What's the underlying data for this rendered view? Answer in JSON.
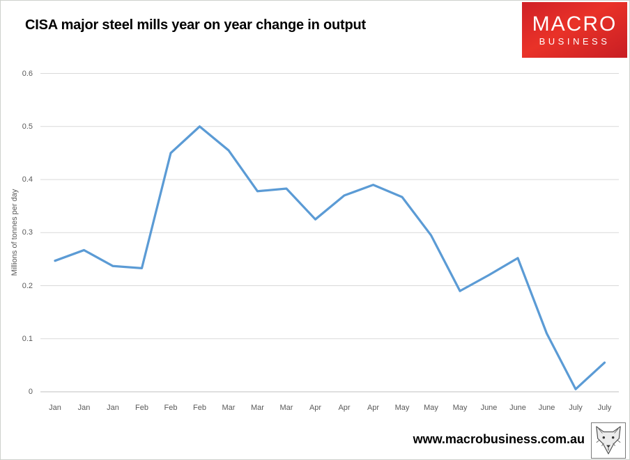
{
  "header": {
    "logo": {
      "line1": "MACRO",
      "line2": "BUSINESS",
      "bg_color": "#da2127",
      "text_color": "#ffffff"
    }
  },
  "chart_data": {
    "type": "line",
    "title": "CISA major steel mills year on year change in output",
    "ylabel": "Millions of tonnes per day",
    "xlabel": "",
    "categories": [
      "Jan",
      "Jan",
      "Jan",
      "Feb",
      "Feb",
      "Feb",
      "Mar",
      "Mar",
      "Mar",
      "Apr",
      "Apr",
      "Apr",
      "May",
      "May",
      "May",
      "June",
      "June",
      "June",
      "July",
      "July"
    ],
    "series": [
      {
        "name": "CISA major steel mills year on year change in output",
        "values": [
          0.247,
          0.267,
          0.237,
          0.233,
          0.45,
          0.5,
          0.455,
          0.378,
          0.383,
          0.325,
          0.37,
          0.39,
          0.367,
          0.295,
          0.19,
          0.22,
          0.252,
          0.11,
          0.005,
          0.055
        ]
      }
    ],
    "ylim": [
      0,
      0.6
    ],
    "yticks": [
      0,
      0.1,
      0.2,
      0.3,
      0.4,
      0.5,
      0.6
    ],
    "grid": true,
    "legend": "none",
    "line_color": "#5B9BD5",
    "gridline_color": "#d9d9d9",
    "zero_axis_color": "#bfbfbf",
    "axis_label_color": "#595959"
  },
  "footer": {
    "url": "www.macrobusiness.com.au",
    "fox_logo": "fox-head-icon"
  }
}
